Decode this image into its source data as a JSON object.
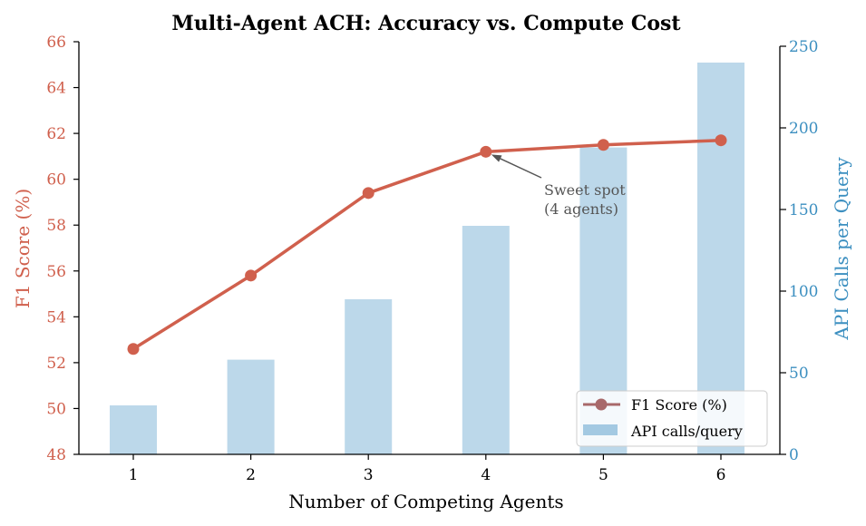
{
  "chart_data": {
    "type": "bar+line",
    "title": "Multi-Agent ACH: Accuracy vs. Compute Cost",
    "xlabel": "Number of Competing Agents",
    "ylabel_left": "F1 Score (%)",
    "ylabel_right": "API Calls per Query",
    "categories": [
      1,
      2,
      3,
      4,
      5,
      6
    ],
    "ylim_left": [
      48,
      66
    ],
    "yticks_left": [
      48,
      50,
      52,
      54,
      56,
      58,
      60,
      62,
      64,
      66
    ],
    "ylim_right": [
      0,
      250
    ],
    "yticks_right": [
      0,
      50,
      100,
      150,
      200,
      250
    ],
    "series": [
      {
        "name": "F1 Score (%)",
        "type": "line",
        "axis": "left",
        "values": [
          52.6,
          55.8,
          59.4,
          61.2,
          61.5,
          61.7
        ]
      },
      {
        "name": "API calls/query",
        "type": "bar",
        "axis": "right",
        "values": [
          30,
          58,
          95,
          140,
          188,
          240
        ]
      }
    ],
    "annotation": {
      "text_line1": "Sweet spot",
      "text_line2": "(4 agents)",
      "target_x": 4,
      "target_y": 61.2
    },
    "legend_position": "lower-right",
    "grid": false
  },
  "colors": {
    "line": "#d0604d",
    "line_legend": "#a8696a",
    "bar": "#bcd8ea",
    "bar_legend": "#a3c9e2",
    "left_axis_text": "#d0604d",
    "right_axis_text": "#3c8fc0",
    "annotation": "#555555"
  }
}
